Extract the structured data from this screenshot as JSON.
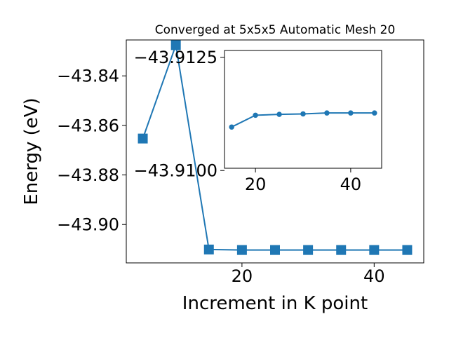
{
  "chart_data": [
    {
      "id": "main",
      "type": "line",
      "title": "Converged at 5x5x5 Automatic Mesh 20",
      "xlabel": "Increment in K point",
      "ylabel": "Energy (eV)",
      "xlim": [
        2.5,
        47.5
      ],
      "ylim": [
        -43.9155,
        -43.8255
      ],
      "xticks": [
        20,
        40
      ],
      "yticks": [
        -43.84,
        -43.86,
        -43.88,
        -43.9
      ],
      "ytick_labels": [
        "−43.84",
        "−43.86",
        "−43.88",
        "−43.90"
      ],
      "marker": "square",
      "color": "#1f77b4",
      "grid": false,
      "series": [
        {
          "x": [
            5,
            10,
            15,
            20,
            25,
            30,
            35,
            40,
            45
          ],
          "values": [
            -43.8653,
            -43.8276,
            -43.9101,
            -43.9103,
            -43.9103,
            -43.9103,
            -43.9103,
            -43.9103,
            -43.9103
          ]
        }
      ]
    },
    {
      "id": "inset",
      "type": "line",
      "xlim": [
        13.5,
        46.5
      ],
      "ylim": [
        -43.91005,
        -43.91265
      ],
      "xticks": [
        20,
        40
      ],
      "yticks": [
        -43.9125,
        -43.91
      ],
      "ytick_labels": [
        "−43.9125",
        "−43.9100"
      ],
      "marker": "circle",
      "color": "#1f77b4",
      "grid": false,
      "series": [
        {
          "x": [
            15,
            20,
            25,
            30,
            35,
            40,
            45
          ],
          "values": [
            -43.91096,
            -43.91122,
            -43.91124,
            -43.91125,
            -43.91127,
            -43.91127,
            -43.91127
          ]
        }
      ]
    }
  ]
}
